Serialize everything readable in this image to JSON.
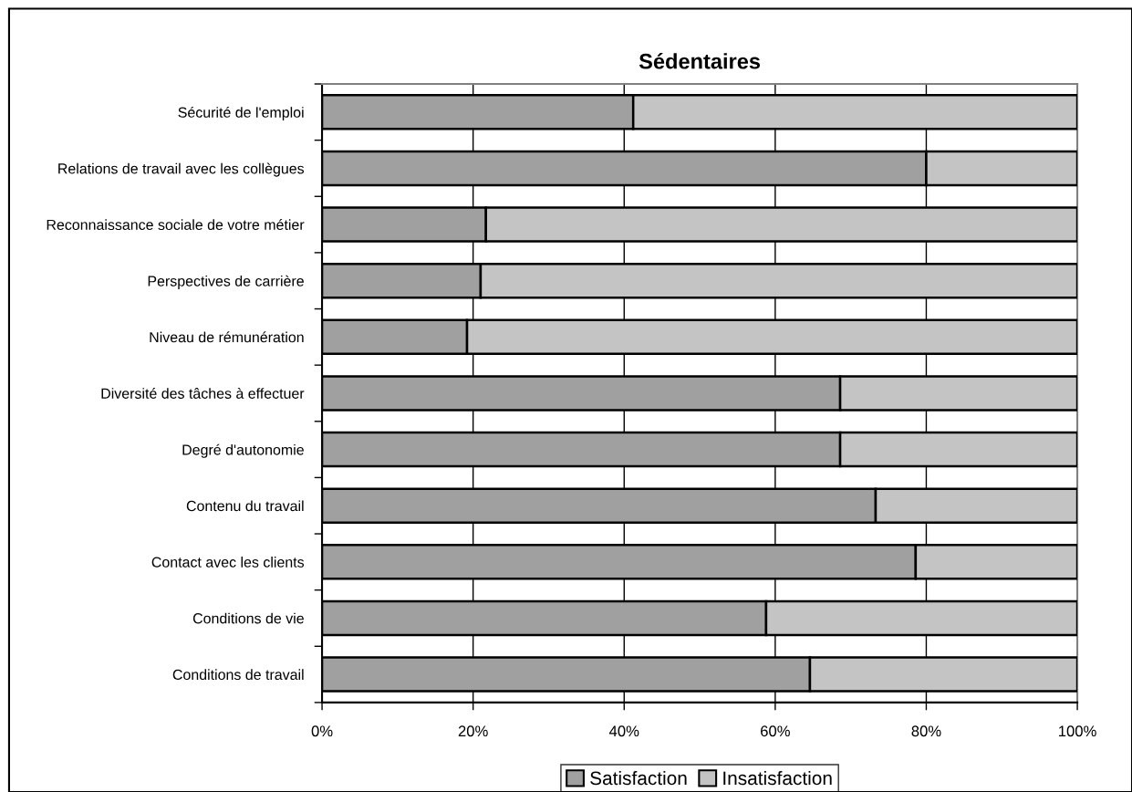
{
  "chart_data": {
    "type": "bar",
    "orientation": "horizontal",
    "stacked": true,
    "title": "Sédentaires",
    "categories": [
      "Sécurité de l'emploi",
      "Relations de travail avec les collègues",
      "Reconnaissance sociale de votre métier",
      "Perspectives de carrière",
      "Niveau de rémunération",
      "Diversité des tâches à effectuer",
      "Degré d'autonomie",
      "Contenu du travail",
      "Contact avec les clients",
      "Conditions de vie",
      "Conditions de travail"
    ],
    "series": [
      {
        "name": "Satisfaction",
        "color": "#a0a0a0",
        "values": [
          41.2,
          80.0,
          21.7,
          21.0,
          19.2,
          68.6,
          68.6,
          73.3,
          78.6,
          58.8,
          64.6
        ]
      },
      {
        "name": "Insatisfaction",
        "color": "#c4c4c4",
        "values": [
          58.8,
          20.0,
          78.3,
          79.0,
          80.8,
          31.4,
          31.4,
          26.7,
          21.4,
          41.2,
          35.4
        ]
      }
    ],
    "xlim": [
      0,
      100
    ],
    "xticks": [
      {
        "value": 0,
        "label": "0%"
      },
      {
        "value": 20,
        "label": "20%"
      },
      {
        "value": 40,
        "label": "40%"
      },
      {
        "value": 60,
        "label": "60%"
      },
      {
        "value": 80,
        "label": "80%"
      },
      {
        "value": 100,
        "label": "100%"
      }
    ],
    "grid": "x",
    "legend": "bottom"
  }
}
